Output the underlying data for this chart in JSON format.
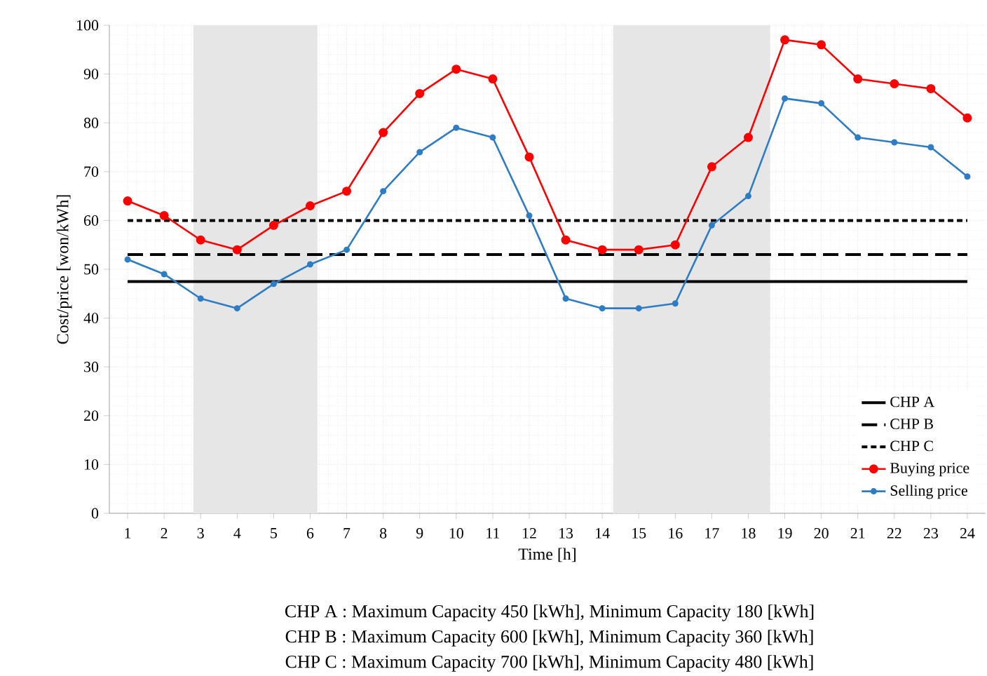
{
  "chart_data": {
    "type": "line",
    "xlabel": "Time [h]",
    "ylabel": "Cost/price [won/kWh]",
    "x": [
      1,
      2,
      3,
      4,
      5,
      6,
      7,
      8,
      9,
      10,
      11,
      12,
      13,
      14,
      15,
      16,
      17,
      18,
      19,
      20,
      21,
      22,
      23,
      24
    ],
    "xlim": [
      0.5,
      24.5
    ],
    "xticks": [
      1,
      2,
      3,
      4,
      5,
      6,
      7,
      8,
      9,
      10,
      11,
      12,
      13,
      14,
      15,
      16,
      17,
      18,
      19,
      20,
      21,
      22,
      23,
      24
    ],
    "ylim": [
      0,
      100
    ],
    "yticks": [
      0,
      10,
      20,
      30,
      40,
      50,
      60,
      70,
      80,
      90,
      100
    ],
    "grid": true,
    "legend": "bottom right",
    "series": [
      {
        "name": "CHP A",
        "color": "#000000",
        "values": [
          47.5,
          47.5,
          47.5,
          47.5,
          47.5,
          47.5,
          47.5,
          47.5,
          47.5,
          47.5,
          47.5,
          47.5,
          47.5,
          47.5,
          47.5,
          47.5,
          47.5,
          47.5,
          47.5,
          47.5,
          47.5,
          47.5,
          47.5,
          47.5
        ],
        "line_style": "solid",
        "marker": "none"
      },
      {
        "name": "CHP B",
        "color": "#000000",
        "values": [
          53,
          53,
          53,
          53,
          53,
          53,
          53,
          53,
          53,
          53,
          53,
          53,
          53,
          53,
          53,
          53,
          53,
          53,
          53,
          53,
          53,
          53,
          53,
          53
        ],
        "line_style": "dashed",
        "marker": "none"
      },
      {
        "name": "CHP C",
        "color": "#000000",
        "values": [
          60,
          60,
          60,
          60,
          60,
          60,
          60,
          60,
          60,
          60,
          60,
          60,
          60,
          60,
          60,
          60,
          60,
          60,
          60,
          60,
          60,
          60,
          60,
          60
        ],
        "line_style": "dotted",
        "marker": "none"
      },
      {
        "name": "Buying price",
        "color": "#ff0000",
        "values": [
          64,
          61,
          56,
          54,
          59,
          63,
          66,
          78,
          86,
          91,
          89,
          73,
          56,
          54,
          54,
          55,
          71,
          77,
          97,
          96,
          89,
          88,
          87,
          81
        ],
        "line_style": "solid",
        "marker": "circle"
      },
      {
        "name": "Selling price",
        "color": "#2e7dc4",
        "values": [
          52,
          49,
          44,
          42,
          47,
          51,
          54,
          66,
          74,
          79,
          77,
          61,
          44,
          42,
          42,
          43,
          59,
          65,
          85,
          84,
          77,
          76,
          75,
          69
        ],
        "line_style": "solid",
        "marker": "circle"
      }
    ],
    "bands": [
      {
        "axis": "x",
        "from": 2.8,
        "to": 6.2,
        "color": "#e6e6e6"
      },
      {
        "axis": "x",
        "from": 14.3,
        "to": 18.6,
        "color": "#e6e6e6"
      }
    ],
    "annotations": [
      "CHP A : Maximum Capacity 450 [kWh], Minimum Capacity 180 [kWh]",
      "CHP B : Maximum Capacity 600 [kWh], Minimum Capacity 360 [kWh]",
      "CHP C : Maximum Capacity 700 [kWh], Minimum Capacity 480 [kWh]"
    ]
  }
}
